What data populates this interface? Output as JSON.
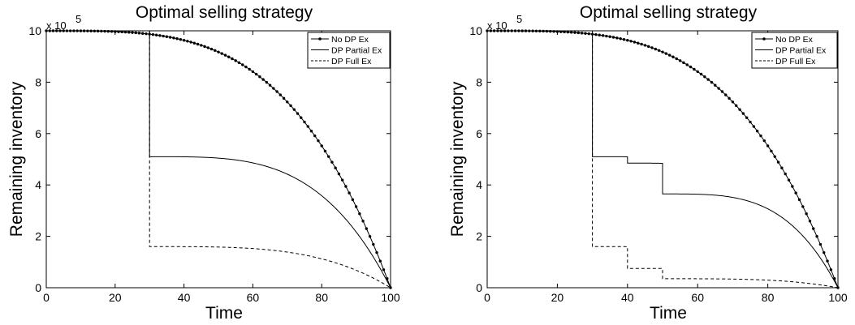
{
  "chart_data": [
    {
      "type": "line",
      "title": "Optimal selling strategy",
      "xlabel": "Time",
      "ylabel": "Remaining inventory",
      "y_scale_note": "x 10",
      "y_scale_exponent": "5",
      "xlim": [
        0,
        100
      ],
      "ylim": [
        0,
        10
      ],
      "x_ticks": [
        0,
        20,
        40,
        60,
        80,
        100
      ],
      "y_ticks": [
        0,
        2,
        4,
        6,
        8,
        10
      ],
      "grid": false,
      "legend_position": "top-right",
      "series": [
        {
          "name": "No DP Ex",
          "style": "solid-dots",
          "kind": "nodp",
          "params": {
            "start": 10,
            "T": 100
          }
        },
        {
          "name": "DP Partial Ex",
          "style": "solid",
          "kind": "steps",
          "params": {
            "start": 10,
            "T": 100,
            "jumps": [
              {
                "t": 30,
                "level": 5.1
              }
            ]
          }
        },
        {
          "name": "DP Full Ex",
          "style": "dashed",
          "kind": "steps",
          "params": {
            "start": 10,
            "T": 100,
            "jumps": [
              {
                "t": 30,
                "level": 1.6
              }
            ]
          }
        }
      ]
    },
    {
      "type": "line",
      "title": "Optimal selling strategy",
      "xlabel": "Time",
      "ylabel": "Remaining inventory",
      "y_scale_note": "x 10",
      "y_scale_exponent": "5",
      "xlim": [
        0,
        100
      ],
      "ylim": [
        0,
        10
      ],
      "x_ticks": [
        0,
        20,
        40,
        60,
        80,
        100
      ],
      "y_ticks": [
        0,
        2,
        4,
        6,
        8,
        10
      ],
      "grid": false,
      "legend_position": "top-right",
      "series": [
        {
          "name": "No DP Ex",
          "style": "solid-dots",
          "kind": "nodp",
          "params": {
            "start": 10,
            "T": 100
          }
        },
        {
          "name": "DP Partial Ex",
          "style": "solid",
          "kind": "steps",
          "params": {
            "start": 10,
            "T": 100,
            "jumps": [
              {
                "t": 30,
                "level": 5.1
              },
              {
                "t": 40,
                "level": 4.85
              },
              {
                "t": 50,
                "level": 3.65
              }
            ]
          }
        },
        {
          "name": "DP Full Ex",
          "style": "dashed",
          "kind": "steps",
          "params": {
            "start": 10,
            "T": 100,
            "jumps": [
              {
                "t": 30,
                "level": 1.6
              },
              {
                "t": 40,
                "level": 0.75
              },
              {
                "t": 50,
                "level": 0.35
              }
            ]
          }
        }
      ]
    }
  ]
}
